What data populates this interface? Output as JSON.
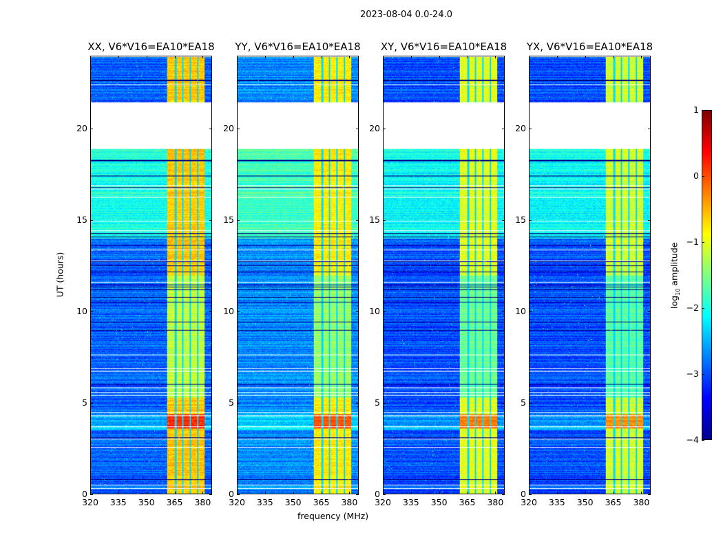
{
  "chart_data": {
    "type": "heatmap",
    "title": "2023-08-04 0.0-24.0",
    "xlabel": "frequency (MHz)",
    "ylabel": "UT (hours)",
    "xlim": [
      320,
      385
    ],
    "ylim": [
      0,
      24
    ],
    "xticks": [
      "320",
      "335",
      "350",
      "365",
      "380"
    ],
    "xtick_values": [
      320,
      335,
      350,
      365,
      380
    ],
    "yticks": [
      "0",
      "5",
      "10",
      "15",
      "20"
    ],
    "ytick_values": [
      0,
      5,
      10,
      15,
      20
    ],
    "panels": [
      {
        "title": "XX, V6*V16=EA10*EA18",
        "background_log_amp": -2.9,
        "band_log_amp": -0.6
      },
      {
        "title": "YY, V6*V16=EA10*EA18",
        "background_log_amp": -2.7,
        "band_log_amp": -0.8
      },
      {
        "title": "XY, V6*V16=EA10*EA18",
        "background_log_amp": -3.0,
        "band_log_amp": -1.0
      },
      {
        "title": "YX, V6*V16=EA10*EA18",
        "background_log_amp": -3.0,
        "band_log_amp": -1.1
      }
    ],
    "rfi_band_mhz": [
      361,
      381
    ],
    "band_gaps_mhz": [
      365.5,
      369.5,
      373.5,
      377.5
    ],
    "data_gap_ut": [
      18.95,
      21.5
    ],
    "colorbar": {
      "label": "log10 amplitude",
      "label_main": "log",
      "label_sub": "10",
      "label_rest": " amplitude",
      "range": [
        -4,
        1
      ],
      "ticks": [
        "1",
        "0",
        "−1",
        "−2",
        "−3",
        "−4"
      ],
      "tick_values": [
        1,
        0,
        -1,
        -2,
        -3,
        -4
      ],
      "colormap": "jet"
    }
  }
}
